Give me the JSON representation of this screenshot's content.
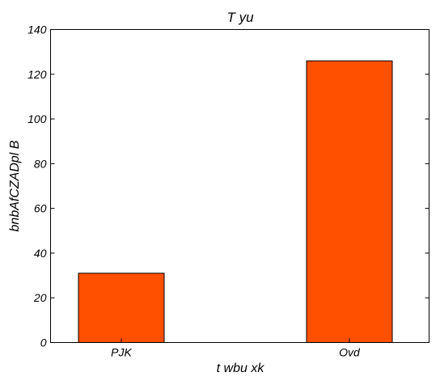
{
  "chart_data": {
    "type": "bar",
    "title": "T yu",
    "xlabel": "t  wbu  xk",
    "ylabel": "bnbAfCZADpl B",
    "categories": [
      "PJK",
      "Ovd"
    ],
    "values": [
      31,
      126
    ],
    "ylim": [
      0,
      140
    ],
    "yticks": [
      0,
      20,
      40,
      60,
      80,
      100,
      120,
      140
    ],
    "grid": false,
    "legend": "none",
    "bar_color": "#ff5000"
  }
}
